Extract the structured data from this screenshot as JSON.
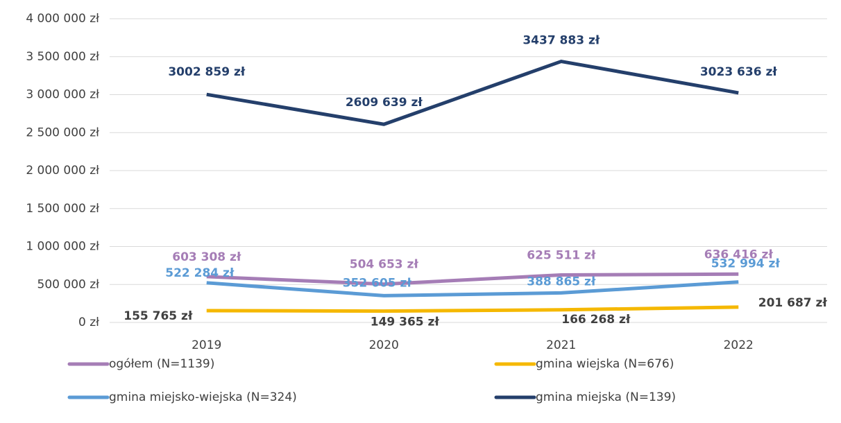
{
  "chart_data": {
    "type": "line",
    "categories": [
      "2019",
      "2020",
      "2021",
      "2022"
    ],
    "series": [
      {
        "name": "ogółem (N=1139)",
        "color": "#a57db6",
        "values": [
          603308,
          504653,
          625511,
          636416
        ],
        "value_labels": [
          "603 308 zł",
          "504 653 zł",
          "625 511 zł",
          "636 416 zł"
        ]
      },
      {
        "name": "gmina wiejska (N=676)",
        "color": "#f5b800",
        "values": [
          155765,
          149365,
          166268,
          201687
        ],
        "value_labels": [
          "155 765 zł",
          "149 365 zł",
          "166 268 zł",
          "201 687 zł"
        ]
      },
      {
        "name": "gmina miejsko-wiejska (N=324)",
        "color": "#5b9bd5",
        "values": [
          522284,
          352605,
          388865,
          532994
        ],
        "value_labels": [
          "522 284 zł",
          "352 605 zł",
          "388 865 zł",
          "532 994 zł"
        ]
      },
      {
        "name": "gmina miejska (N=139)",
        "color": "#243f6b",
        "values": [
          3002859,
          2609639,
          3437883,
          3023636
        ],
        "value_labels": [
          "3002 859 zł",
          "2609 639 zł",
          "3437 883 zł",
          "3023 636 zł"
        ]
      }
    ],
    "ylim": [
      0,
      4000000
    ],
    "yticks": [
      {
        "value": 0,
        "label": "0 zł"
      },
      {
        "value": 500000,
        "label": "500 000 zł"
      },
      {
        "value": 1000000,
        "label": "1 000 000 zł"
      },
      {
        "value": 1500000,
        "label": "1 500 000 zł"
      },
      {
        "value": 2000000,
        "label": "2 000 000 zł"
      },
      {
        "value": 2500000,
        "label": "2 500 000 zł"
      },
      {
        "value": 3000000,
        "label": "3 000 000 zł"
      },
      {
        "value": 3500000,
        "label": "3 500 000 zł"
      },
      {
        "value": 4000000,
        "label": "4 000 000 zł"
      }
    ],
    "grid": true
  }
}
